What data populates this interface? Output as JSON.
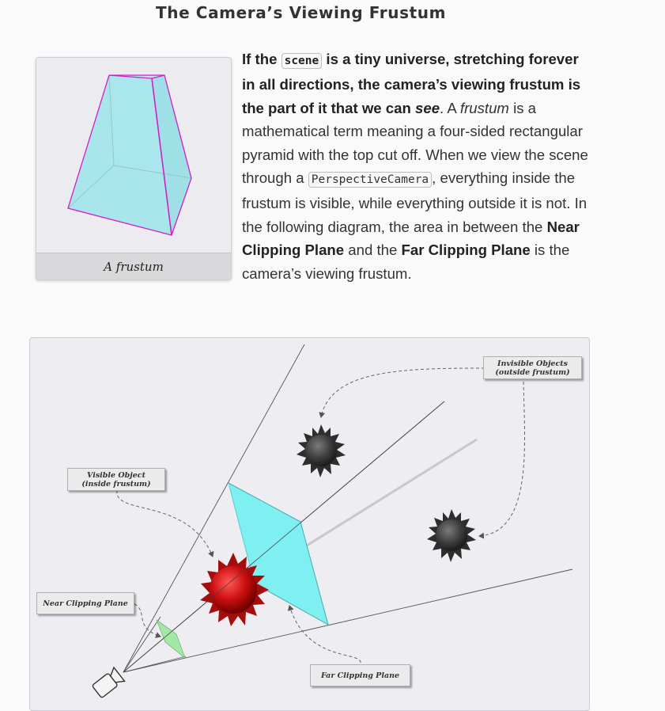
{
  "page": {
    "title": "The Camera’s Viewing Frustum"
  },
  "figure": {
    "caption": "A frustum"
  },
  "paragraph": {
    "t1": "If the ",
    "code1": "scene",
    "t2": " is a tiny universe, stretching forever in all directions, the camera’s viewing frustum is the part of it that we can ",
    "em1": "see",
    "t3": ". A ",
    "em2": "frustum",
    "t4": " is a mathematical term meaning a four-sided rectangular pyramid with the top cut off. When we view the scene through a ",
    "code2": "PerspectiveCamera",
    "t5": ", everything inside the frustum is visible, while everything outside it is not. In the following diagram, the area in between the ",
    "b1": "Near Clipping Plane",
    "t6": " and the ",
    "b2": "Far Clipping Plane",
    "t7": " is the camera’s viewing frustum."
  },
  "diagram": {
    "labels": {
      "invisible": "Invisible Objects\n(outside frustum)",
      "visible": "Visible Object\n(inside frustum)",
      "near": "Near Clipping Plane",
      "far": "Far Clipping Plane"
    },
    "colors": {
      "frustum_fill": "#a9e6ec",
      "frustum_edge": "#d21fc4",
      "near_plane": "#9fe8a0",
      "far_plane": "#7ef0f2",
      "visible_object": "#d11414",
      "invisible_object": "#444444",
      "background": "#ededf2"
    },
    "icons": [
      "camera-icon"
    ]
  }
}
